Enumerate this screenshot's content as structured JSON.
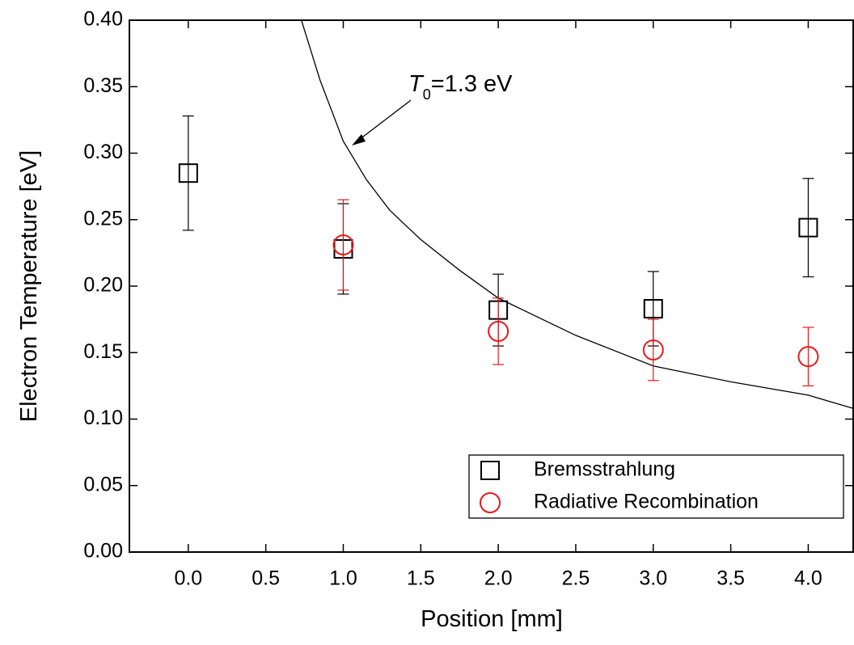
{
  "chart_data": {
    "type": "scatter",
    "xlabel": "Position [mm]",
    "ylabel": "Electron Temperature [eV]",
    "xlim": [
      -0.38,
      4.29
    ],
    "ylim": [
      0,
      0.4
    ],
    "xticks": [
      {
        "value": 0,
        "label": "0.0"
      },
      0.5,
      {
        "value": 1,
        "label": "1.0"
      },
      1.5,
      {
        "value": 2,
        "label": "2.0"
      },
      2.5,
      {
        "value": 3,
        "label": "3.0"
      },
      3.5,
      {
        "value": 4,
        "label": "4.0"
      }
    ],
    "yticks": [
      {
        "value": 0,
        "label": "0.00"
      },
      0.05,
      {
        "value": 0.1,
        "label": "0.10"
      },
      0.15,
      {
        "value": 0.2,
        "label": "0.20"
      },
      0.25,
      {
        "value": 0.3,
        "label": "0.30"
      },
      0.35,
      {
        "value": 0.4,
        "label": "0.40"
      }
    ],
    "series": [
      {
        "name": "Bremsstrahlung",
        "color": "#000000",
        "marker": "square",
        "x": [
          0,
          1,
          2,
          3,
          4
        ],
        "values": [
          0.285,
          0.228,
          0.182,
          0.183,
          0.244
        ],
        "errors": [
          0.043,
          0.034,
          0.027,
          0.028,
          0.037
        ]
      },
      {
        "name": "Radiative Recombination",
        "color": "#e8191b",
        "marker": "circle",
        "x": [
          1,
          2,
          3,
          4
        ],
        "values": [
          0.231,
          0.166,
          0.152,
          0.147
        ],
        "errors": [
          0.034,
          0.025,
          0.023,
          0.022
        ]
      }
    ],
    "curve": {
      "color": "#000000",
      "x": [
        0.73,
        0.85,
        1.0,
        1.15,
        1.3,
        1.5,
        1.75,
        2.0,
        2.5,
        3.0,
        3.5,
        4.0,
        4.29
      ],
      "values": [
        0.4,
        0.355,
        0.309,
        0.28,
        0.257,
        0.235,
        0.212,
        0.191,
        0.163,
        0.14,
        0.128,
        0.118,
        0.108
      ]
    },
    "annotation": {
      "symbol": "T",
      "subscript": "0",
      "text": "=1.3 eV"
    },
    "legend": "lower right"
  }
}
